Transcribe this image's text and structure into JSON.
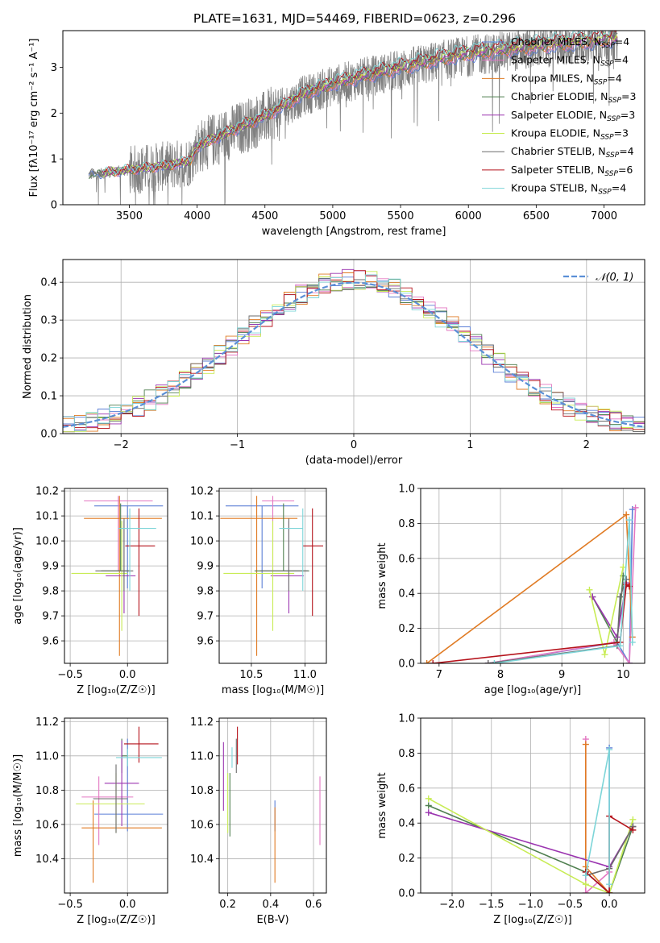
{
  "colors": {
    "chabrier_miles": "#5b7fd6",
    "salpeter_miles": "#e377c2",
    "kroupa_miles": "#e07b24",
    "chabrier_elodie": "#4f7f4f",
    "salpeter_elodie": "#9b35b0",
    "kroupa_elodie": "#c8ec55",
    "chabrier_stelib": "#6b6b6b",
    "salpeter_stelib": "#b5121b",
    "kroupa_stelib": "#7dd5d8",
    "data_spectrum": "#808080",
    "normal_curve": "#5b8fd6"
  },
  "chart_data": [
    {
      "id": "spectrum",
      "type": "line",
      "title": "PLATE=1631, MJD=54469, FIBERID=0623, z=0.296",
      "xlabel": "wavelength [Angstrom, rest frame]",
      "ylabel": "Flux [fλ10⁻¹⁷ erg cm⁻² s⁻¹ A⁻¹]",
      "xlim": [
        3010,
        7300
      ],
      "ylim": [
        0,
        3.8
      ],
      "xticks": [
        3500,
        4000,
        4500,
        5000,
        5500,
        6000,
        6500,
        7000
      ],
      "yticks": [
        0,
        1,
        2,
        3
      ],
      "legend_loc": "upper right",
      "legend": [
        {
          "label": "Chabrier MILES, N",
          "sub": "SSP",
          "tail": "=4"
        },
        {
          "label": "Salpeter MILES, N",
          "sub": "SSP",
          "tail": "=4"
        },
        {
          "label": "Kroupa MILES, N",
          "sub": "SSP",
          "tail": "=4"
        },
        {
          "label": "Chabrier ELODIE, N",
          "sub": "SSP",
          "tail": "=3"
        },
        {
          "label": "Salpeter ELODIE, N",
          "sub": "SSP",
          "tail": "=3"
        },
        {
          "label": "Kroupa ELODIE, N",
          "sub": "SSP",
          "tail": "=3"
        },
        {
          "label": "Chabrier STELIB, N",
          "sub": "SSP",
          "tail": "=4"
        },
        {
          "label": "Salpeter STELIB, N",
          "sub": "SSP",
          "tail": "=6"
        },
        {
          "label": "Kroupa STELIB, N",
          "sub": "SSP",
          "tail": "=4"
        }
      ],
      "continuum": {
        "wavelength": [
          3200,
          3500,
          3800,
          3950,
          4000,
          4300,
          4500,
          4800,
          5000,
          5200,
          5500,
          5800,
          6000,
          6300,
          6600,
          6800,
          7000,
          7100
        ],
        "flux": [
          0.65,
          0.75,
          0.85,
          0.95,
          1.25,
          1.65,
          1.9,
          2.4,
          2.6,
          2.75,
          2.95,
          3.15,
          3.25,
          3.35,
          3.45,
          3.5,
          3.55,
          3.6
        ]
      }
    },
    {
      "id": "residuals",
      "type": "histogram",
      "xlabel": "(data-model)/error",
      "ylabel": "Normed distribution",
      "xlim": [
        -2.5,
        2.5
      ],
      "ylim": [
        0,
        0.46
      ],
      "xticks": [
        -2,
        -1,
        0,
        1,
        2
      ],
      "yticks": [
        0.0,
        0.1,
        0.2,
        0.3,
        0.4
      ],
      "legend_loc": "upper right",
      "legend": [
        "𝒩(0, 1)"
      ],
      "bin_width": 0.1,
      "bin_range": [
        -2.5,
        2.5
      ]
    },
    {
      "id": "age_vs_Z",
      "type": "errorbar",
      "xlabel": "Z [log₁₀(Z/Z☉)]",
      "ylabel": "age  [log₁₀(age/yr)]",
      "xlim": [
        -0.55,
        0.35
      ],
      "ylim": [
        9.51,
        10.21
      ],
      "xticks": [
        -0.5,
        0.0
      ],
      "yticks": [
        9.6,
        9.7,
        9.8,
        9.9,
        10.0,
        10.1,
        10.2
      ],
      "points": [
        {
          "model": "chabrier_miles",
          "x": 0.0,
          "y": 10.14,
          "xerr": [
            0.29,
            0.31
          ],
          "yerr": [
            0.33,
            0.0
          ]
        },
        {
          "model": "salpeter_miles",
          "x": -0.08,
          "y": 10.16,
          "xerr": [
            0.3,
            0.3
          ],
          "yerr": [
            0.28,
            0.02
          ]
        },
        {
          "model": "kroupa_miles",
          "x": -0.07,
          "y": 10.09,
          "xerr": [
            0.31,
            0.37
          ],
          "yerr": [
            0.55,
            0.09
          ]
        },
        {
          "model": "chabrier_elodie",
          "x": -0.06,
          "y": 9.88,
          "xerr": [
            0.17,
            0.08
          ],
          "yerr": [
            0.0,
            0.27
          ]
        },
        {
          "model": "salpeter_elodie",
          "x": -0.03,
          "y": 9.86,
          "xerr": [
            0.16,
            0.1
          ],
          "yerr": [
            0.15,
            0.22
          ]
        },
        {
          "model": "kroupa_elodie",
          "x": -0.05,
          "y": 9.87,
          "xerr": [
            0.44,
            0.05
          ],
          "yerr": [
            0.23,
            0.21
          ]
        },
        {
          "model": "chabrier_stelib",
          "x": -0.03,
          "y": 9.88,
          "xerr": [
            0.25,
            0.08
          ],
          "yerr": [
            0.08,
            0.21
          ]
        },
        {
          "model": "salpeter_stelib",
          "x": 0.1,
          "y": 9.98,
          "xerr": [
            0.12,
            0.14
          ],
          "yerr": [
            0.28,
            0.15
          ]
        },
        {
          "model": "kroupa_stelib",
          "x": 0.02,
          "y": 10.05,
          "xerr": [
            0.1,
            0.23
          ],
          "yerr": [
            0.25,
            0.08
          ]
        }
      ]
    },
    {
      "id": "age_vs_mass",
      "type": "errorbar",
      "xlabel": "mass [log₁₀(M/M☉)]",
      "xlim": [
        10.2,
        11.2
      ],
      "ylim": [
        9.51,
        10.21
      ],
      "xticks": [
        10.5,
        11.0
      ],
      "yticks": [
        9.6,
        9.7,
        9.8,
        9.9,
        10.0,
        10.1,
        10.2
      ],
      "points": [
        {
          "model": "chabrier_miles",
          "x": 10.6,
          "y": 10.14,
          "xerr": [
            0.34,
            0.34
          ],
          "yerr": [
            0.33,
            0.0
          ]
        },
        {
          "model": "salpeter_miles",
          "x": 10.7,
          "y": 10.16,
          "xerr": [
            0.1,
            0.2
          ],
          "yerr": [
            0.28,
            0.02
          ]
        },
        {
          "model": "kroupa_miles",
          "x": 10.55,
          "y": 10.09,
          "xerr": [
            0.34,
            0.38
          ],
          "yerr": [
            0.55,
            0.09
          ]
        },
        {
          "model": "chabrier_elodie",
          "x": 10.8,
          "y": 9.88,
          "xerr": [
            0.27,
            0.24
          ],
          "yerr": [
            0.0,
            0.27
          ]
        },
        {
          "model": "salpeter_elodie",
          "x": 10.85,
          "y": 9.86,
          "xerr": [
            0.17,
            0.14
          ],
          "yerr": [
            0.15,
            0.22
          ]
        },
        {
          "model": "kroupa_elodie",
          "x": 10.7,
          "y": 9.87,
          "xerr": [
            0.46,
            0.2
          ],
          "yerr": [
            0.23,
            0.21
          ]
        },
        {
          "model": "chabrier_stelib",
          "x": 10.85,
          "y": 9.88,
          "xerr": [
            0.27,
            0.18
          ],
          "yerr": [
            0.08,
            0.21
          ]
        },
        {
          "model": "salpeter_stelib",
          "x": 11.07,
          "y": 9.98,
          "xerr": [
            0.09,
            0.1
          ],
          "yerr": [
            0.28,
            0.15
          ]
        },
        {
          "model": "kroupa_stelib",
          "x": 10.98,
          "y": 10.05,
          "xerr": [
            0.22,
            0.0
          ],
          "yerr": [
            0.25,
            0.08
          ]
        }
      ]
    },
    {
      "id": "weight_vs_age",
      "type": "line",
      "xlabel": "age  [log₁₀(age/yr)]",
      "ylabel": "mass weight",
      "xlim": [
        6.7,
        10.35
      ],
      "ylim": [
        0,
        1.0
      ],
      "xticks": [
        7,
        8,
        9,
        10
      ],
      "yticks": [
        0.0,
        0.2,
        0.4,
        0.6,
        0.8,
        1.0
      ],
      "series": [
        {
          "model": "chabrier_miles",
          "x": [
            7.8,
            9.9,
            10.1,
            10.15
          ],
          "y": [
            0.0,
            0.12,
            0.0,
            0.88
          ]
        },
        {
          "model": "salpeter_miles",
          "x": [
            7.8,
            9.85,
            10.1,
            10.2
          ],
          "y": [
            0.0,
            0.12,
            0.0,
            0.89
          ]
        },
        {
          "model": "kroupa_miles",
          "x": [
            6.8,
            10.05,
            10.15
          ],
          "y": [
            0.0,
            0.85,
            0.15
          ]
        },
        {
          "model": "chabrier_elodie",
          "x": [
            9.5,
            9.9,
            10.0
          ],
          "y": [
            0.38,
            0.12,
            0.5
          ]
        },
        {
          "model": "salpeter_elodie",
          "x": [
            9.5,
            9.9,
            10.05
          ],
          "y": [
            0.38,
            0.15,
            0.46
          ]
        },
        {
          "model": "kroupa_elodie",
          "x": [
            9.45,
            9.7,
            10.0
          ],
          "y": [
            0.42,
            0.05,
            0.55
          ]
        },
        {
          "model": "chabrier_stelib",
          "x": [
            7.8,
            9.9,
            9.95,
            10.05
          ],
          "y": [
            0.0,
            0.1,
            0.38,
            0.48
          ]
        },
        {
          "model": "salpeter_stelib",
          "x": [
            6.9,
            9.95,
            10.05,
            10.1
          ],
          "y": [
            0.0,
            0.12,
            0.45,
            0.44
          ]
        },
        {
          "model": "kroupa_stelib",
          "x": [
            7.9,
            9.95,
            10.1,
            10.15
          ],
          "y": [
            0.0,
            0.1,
            0.82,
            0.12
          ]
        }
      ]
    },
    {
      "id": "mass_vs_Z",
      "type": "errorbar",
      "xlabel": "Z [log₁₀(Z/Z☉)]",
      "ylabel": "mass [log₁₀(M/M☉)]",
      "xlim": [
        -0.55,
        0.35
      ],
      "ylim": [
        10.2,
        11.22
      ],
      "xticks": [
        -0.5,
        0.0
      ],
      "yticks": [
        10.4,
        10.6,
        10.8,
        11.0,
        11.2
      ],
      "points": [
        {
          "model": "chabrier_miles",
          "x": 0.0,
          "y": 10.66,
          "xerr": [
            0.29,
            0.31
          ],
          "yerr": [
            0.1,
            0.44
          ]
        },
        {
          "model": "salpeter_miles",
          "x": -0.25,
          "y": 10.76,
          "xerr": [
            0.15,
            0.3
          ],
          "yerr": [
            0.28,
            0.12
          ]
        },
        {
          "model": "kroupa_miles",
          "x": -0.3,
          "y": 10.58,
          "xerr": [
            0.1,
            0.6
          ],
          "yerr": [
            0.32,
            0.16
          ]
        },
        {
          "model": "chabrier_elodie",
          "x": -0.05,
          "y": 11.0,
          "xerr": [
            0.0,
            0.05
          ],
          "yerr": [
            0.1,
            0.1
          ]
        },
        {
          "model": "salpeter_elodie",
          "x": -0.05,
          "y": 10.84,
          "xerr": [
            0.15,
            0.15
          ],
          "yerr": [
            0.25,
            0.25
          ]
        },
        {
          "model": "kroupa_elodie",
          "x": -0.1,
          "y": 10.72,
          "xerr": [
            0.35,
            0.25
          ],
          "yerr": [
            0.17,
            0.18
          ]
        },
        {
          "model": "chabrier_stelib",
          "x": -0.1,
          "y": 10.75,
          "xerr": [
            0.2,
            0.1
          ],
          "yerr": [
            0.2,
            0.2
          ]
        },
        {
          "model": "salpeter_stelib",
          "x": 0.1,
          "y": 11.07,
          "xerr": [
            0.13,
            0.17
          ],
          "yerr": [
            0.11,
            0.1
          ]
        },
        {
          "model": "kroupa_stelib",
          "x": 0.0,
          "y": 10.99,
          "xerr": [
            0.1,
            0.3
          ],
          "yerr": [
            0.05,
            0.05
          ]
        }
      ]
    },
    {
      "id": "mass_vs_ebv",
      "type": "errorbar",
      "xlabel": "E(B-V)",
      "xlim": [
        0.16,
        0.66
      ],
      "ylim": [
        10.2,
        11.22
      ],
      "xticks": [
        0.2,
        0.4,
        0.6
      ],
      "yticks": [
        10.4,
        10.6,
        10.8,
        11.0,
        11.2
      ],
      "points": [
        {
          "model": "chabrier_miles",
          "x": 0.42,
          "y": 10.66,
          "xerr": [
            0,
            0
          ],
          "yerr": [
            0.1,
            0.08
          ]
        },
        {
          "model": "salpeter_miles",
          "x": 0.63,
          "y": 10.76,
          "xerr": [
            0,
            0
          ],
          "yerr": [
            0.28,
            0.12
          ]
        },
        {
          "model": "kroupa_miles",
          "x": 0.42,
          "y": 10.58,
          "xerr": [
            0,
            0
          ],
          "yerr": [
            0.32,
            0.12
          ]
        },
        {
          "model": "chabrier_elodie",
          "x": 0.21,
          "y": 10.8,
          "xerr": [
            0,
            0
          ],
          "yerr": [
            0.27,
            0.1
          ]
        },
        {
          "model": "salpeter_elodie",
          "x": 0.18,
          "y": 10.88,
          "xerr": [
            0,
            0
          ],
          "yerr": [
            0.2,
            0.2
          ]
        },
        {
          "model": "kroupa_elodie",
          "x": 0.2,
          "y": 10.72,
          "xerr": [
            0,
            0
          ],
          "yerr": [
            0.17,
            0.18
          ]
        },
        {
          "model": "chabrier_stelib",
          "x": 0.24,
          "y": 11.0,
          "xerr": [
            0,
            0
          ],
          "yerr": [
            0.1,
            0.1
          ]
        },
        {
          "model": "salpeter_stelib",
          "x": 0.245,
          "y": 11.05,
          "xerr": [
            0,
            0
          ],
          "yerr": [
            0.1,
            0.12
          ]
        },
        {
          "model": "kroupa_stelib",
          "x": 0.22,
          "y": 10.99,
          "xerr": [
            0,
            0
          ],
          "yerr": [
            0.06,
            0.06
          ]
        }
      ]
    },
    {
      "id": "weight_vs_Z",
      "type": "line",
      "xlabel": "Z [log₁₀(Z/Z☉)]",
      "ylabel": "mass weight",
      "xlim": [
        -2.4,
        0.45
      ],
      "ylim": [
        0,
        1.0
      ],
      "xticks": [
        -2.0,
        -1.5,
        -1.0,
        -0.5,
        0.0
      ],
      "yticks": [
        0.0,
        0.2,
        0.4,
        0.6,
        0.8,
        1.0
      ],
      "series": [
        {
          "model": "chabrier_miles",
          "x": [
            -0.3,
            0.0,
            0.0
          ],
          "y": [
            0.12,
            0.0,
            0.83
          ]
        },
        {
          "model": "salpeter_miles",
          "x": [
            -0.3,
            -0.3,
            0.0
          ],
          "y": [
            0.88,
            0.0,
            0.12
          ]
        },
        {
          "model": "kroupa_miles",
          "x": [
            -0.3,
            -0.3,
            0.0
          ],
          "y": [
            0.85,
            0.15,
            0.0
          ]
        },
        {
          "model": "chabrier_elodie",
          "x": [
            -2.3,
            -0.3,
            0.0,
            0.3
          ],
          "y": [
            0.5,
            0.12,
            0.0,
            0.38
          ]
        },
        {
          "model": "salpeter_elodie",
          "x": [
            -2.3,
            0.0,
            0.3
          ],
          "y": [
            0.46,
            0.15,
            0.38
          ]
        },
        {
          "model": "kroupa_elodie",
          "x": [
            -2.3,
            -0.3,
            0.0,
            0.3
          ],
          "y": [
            0.54,
            0.05,
            0.0,
            0.42
          ]
        },
        {
          "model": "chabrier_stelib",
          "x": [
            -0.3,
            0.0,
            0.3
          ],
          "y": [
            0.1,
            0.14,
            0.38
          ]
        },
        {
          "model": "salpeter_stelib",
          "x": [
            -0.3,
            0.0,
            0.0,
            0.3
          ],
          "y": [
            0.12,
            0.0,
            0.44,
            0.36
          ]
        },
        {
          "model": "kroupa_stelib",
          "x": [
            -0.3,
            0.0,
            0.0
          ],
          "y": [
            0.1,
            0.82,
            0.05
          ]
        }
      ]
    }
  ]
}
